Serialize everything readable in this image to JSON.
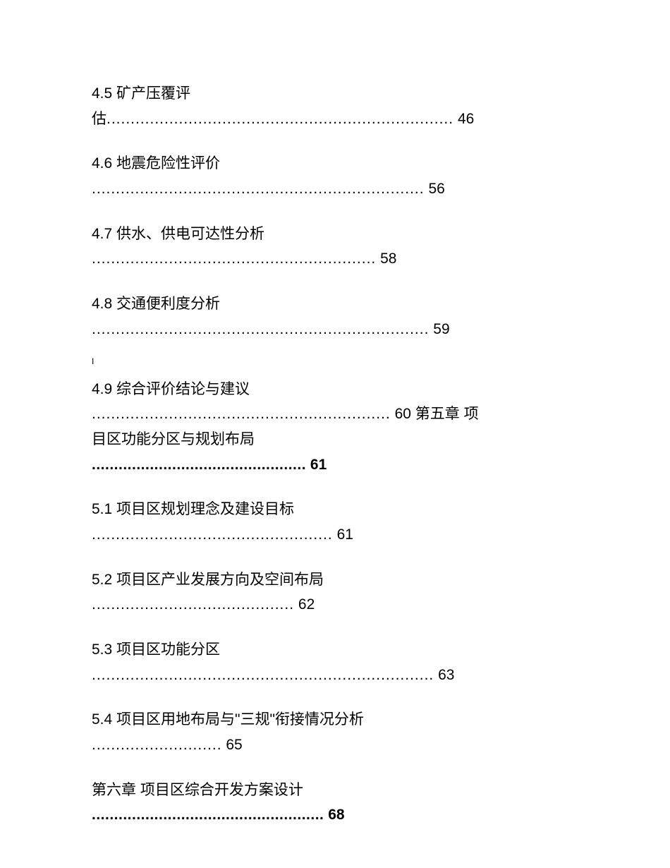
{
  "entries": [
    {
      "number": "4.5",
      "title": "矿产压覆评估",
      "titlePart1": "4.5 矿产压覆评",
      "titlePart2": "估",
      "page": "46",
      "split": true,
      "dots": "........................................................................",
      "bold": false
    },
    {
      "number": "4.6",
      "title": "地震危险性评价",
      "titleFull": "4.6 地震危险性评价",
      "page": "56",
      "dots": ".....................................................................",
      "bold": false
    },
    {
      "number": "4.7",
      "title": "供水、供电可达性分析",
      "titleFull": "4.7 供水、供电可达性分析",
      "page": "58",
      "dots": "...........................................................",
      "bold": false
    },
    {
      "number": "4.8",
      "title": "交通便利度分析",
      "titleFull": "4.8 交通便利度分析",
      "page": "59",
      "dots": "......................................................................",
      "bold": false
    }
  ],
  "marker": "I",
  "entry49": {
    "titleFull": "4.9 综合评价结论与建议",
    "dots": "..............................................................",
    "page": "60",
    "chapterText": "第五章 项目区功能分区与规划布局",
    "chapterPart1": "第五章 项",
    "chapterPart2": "目区功能分区与规划布局",
    "chapterDots": "................................................",
    "chapterPage": "61"
  },
  "entries2": [
    {
      "titleFull": "5.1 项目区规划理念及建设目标",
      "page": "61",
      "dots": "..................................................",
      "bold": false
    },
    {
      "titleFull": "5.2 项目区产业发展方向及空间布局",
      "page": "62",
      "dots": "..........................................",
      "bold": false
    },
    {
      "titleFull": "5.3 项目区功能分区",
      "page": "63",
      "dots": ".......................................................................",
      "bold": false
    },
    {
      "titleFull": "5.4 项目区用地布局与\"三规\"衔接情况分析",
      "page": "65",
      "dots": "...........................",
      "bold": false
    }
  ],
  "chapter6": {
    "titleFull": "第六章 项目区综合开发方案设计",
    "page": "68",
    "dots": "....................................................",
    "bold": true
  },
  "styling": {
    "fontSize": 21,
    "lineHeight": 1.7,
    "textColor": "#000000",
    "backgroundColor": "#ffffff",
    "entrySpacing": 28,
    "pageWidth": 950,
    "pageHeight": 1230
  }
}
